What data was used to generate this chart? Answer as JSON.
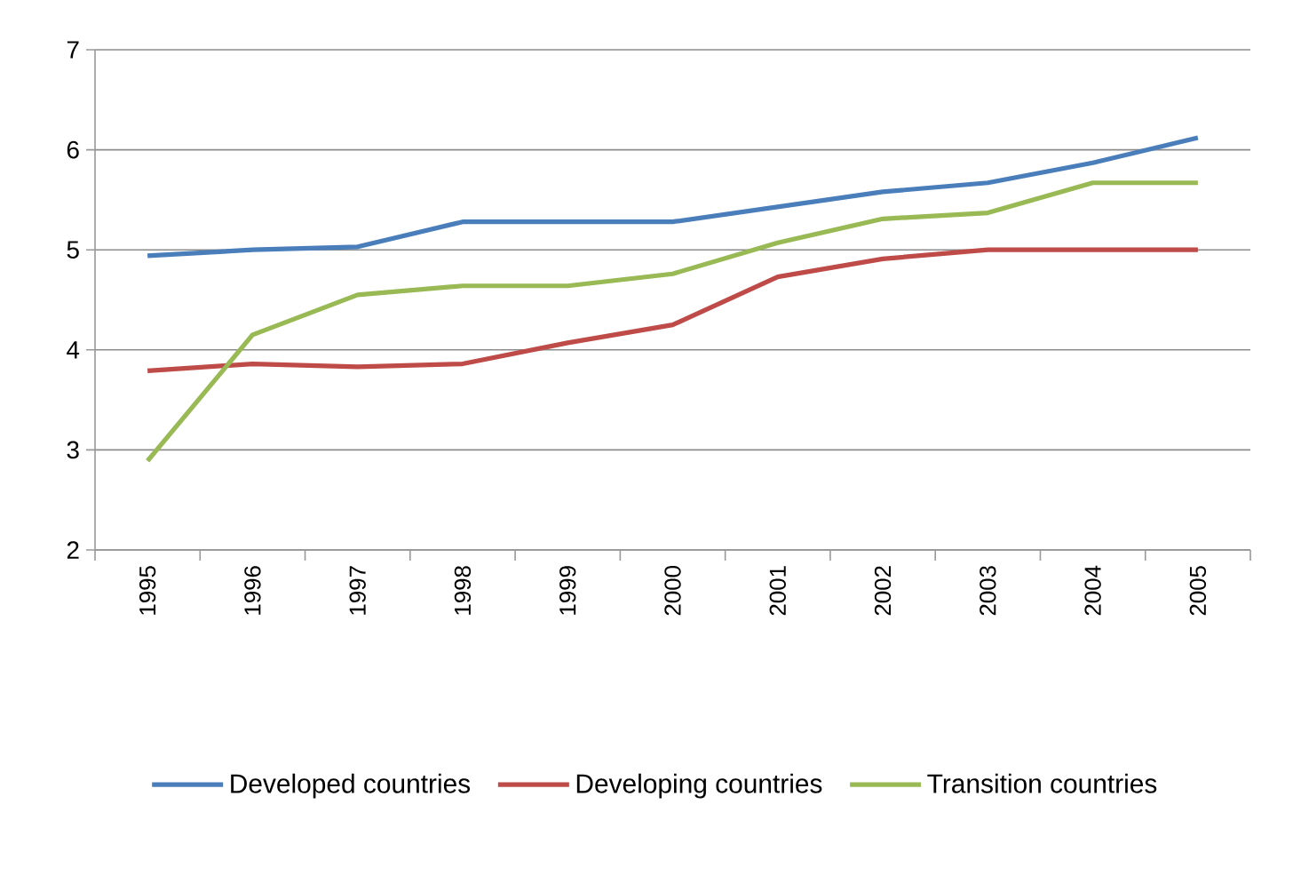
{
  "chart_data": {
    "type": "line",
    "categories": [
      "1995",
      "1996",
      "1997",
      "1998",
      "1999",
      "2000",
      "2001",
      "2002",
      "2003",
      "2004",
      "2005"
    ],
    "series": [
      {
        "name": "Developed countries",
        "color": "#4a7ebb",
        "values": [
          4.94,
          5.0,
          5.03,
          5.28,
          5.28,
          5.28,
          5.43,
          5.58,
          5.67,
          5.87,
          6.12
        ]
      },
      {
        "name": "Developing countries",
        "color": "#be4b48",
        "values": [
          3.79,
          3.86,
          3.83,
          3.86,
          4.07,
          4.25,
          4.73,
          4.91,
          5.0,
          5.0,
          5.0
        ]
      },
      {
        "name": "Transition countries",
        "color": "#98b954",
        "values": [
          2.89,
          4.15,
          4.55,
          4.64,
          4.64,
          4.76,
          5.07,
          5.31,
          5.37,
          5.67,
          5.67
        ]
      }
    ],
    "ylim": [
      2,
      7
    ],
    "yticks": [
      2,
      3,
      4,
      5,
      6,
      7
    ],
    "grid": "y",
    "legend": "bottom",
    "marker": "none",
    "line_style": "solid"
  }
}
